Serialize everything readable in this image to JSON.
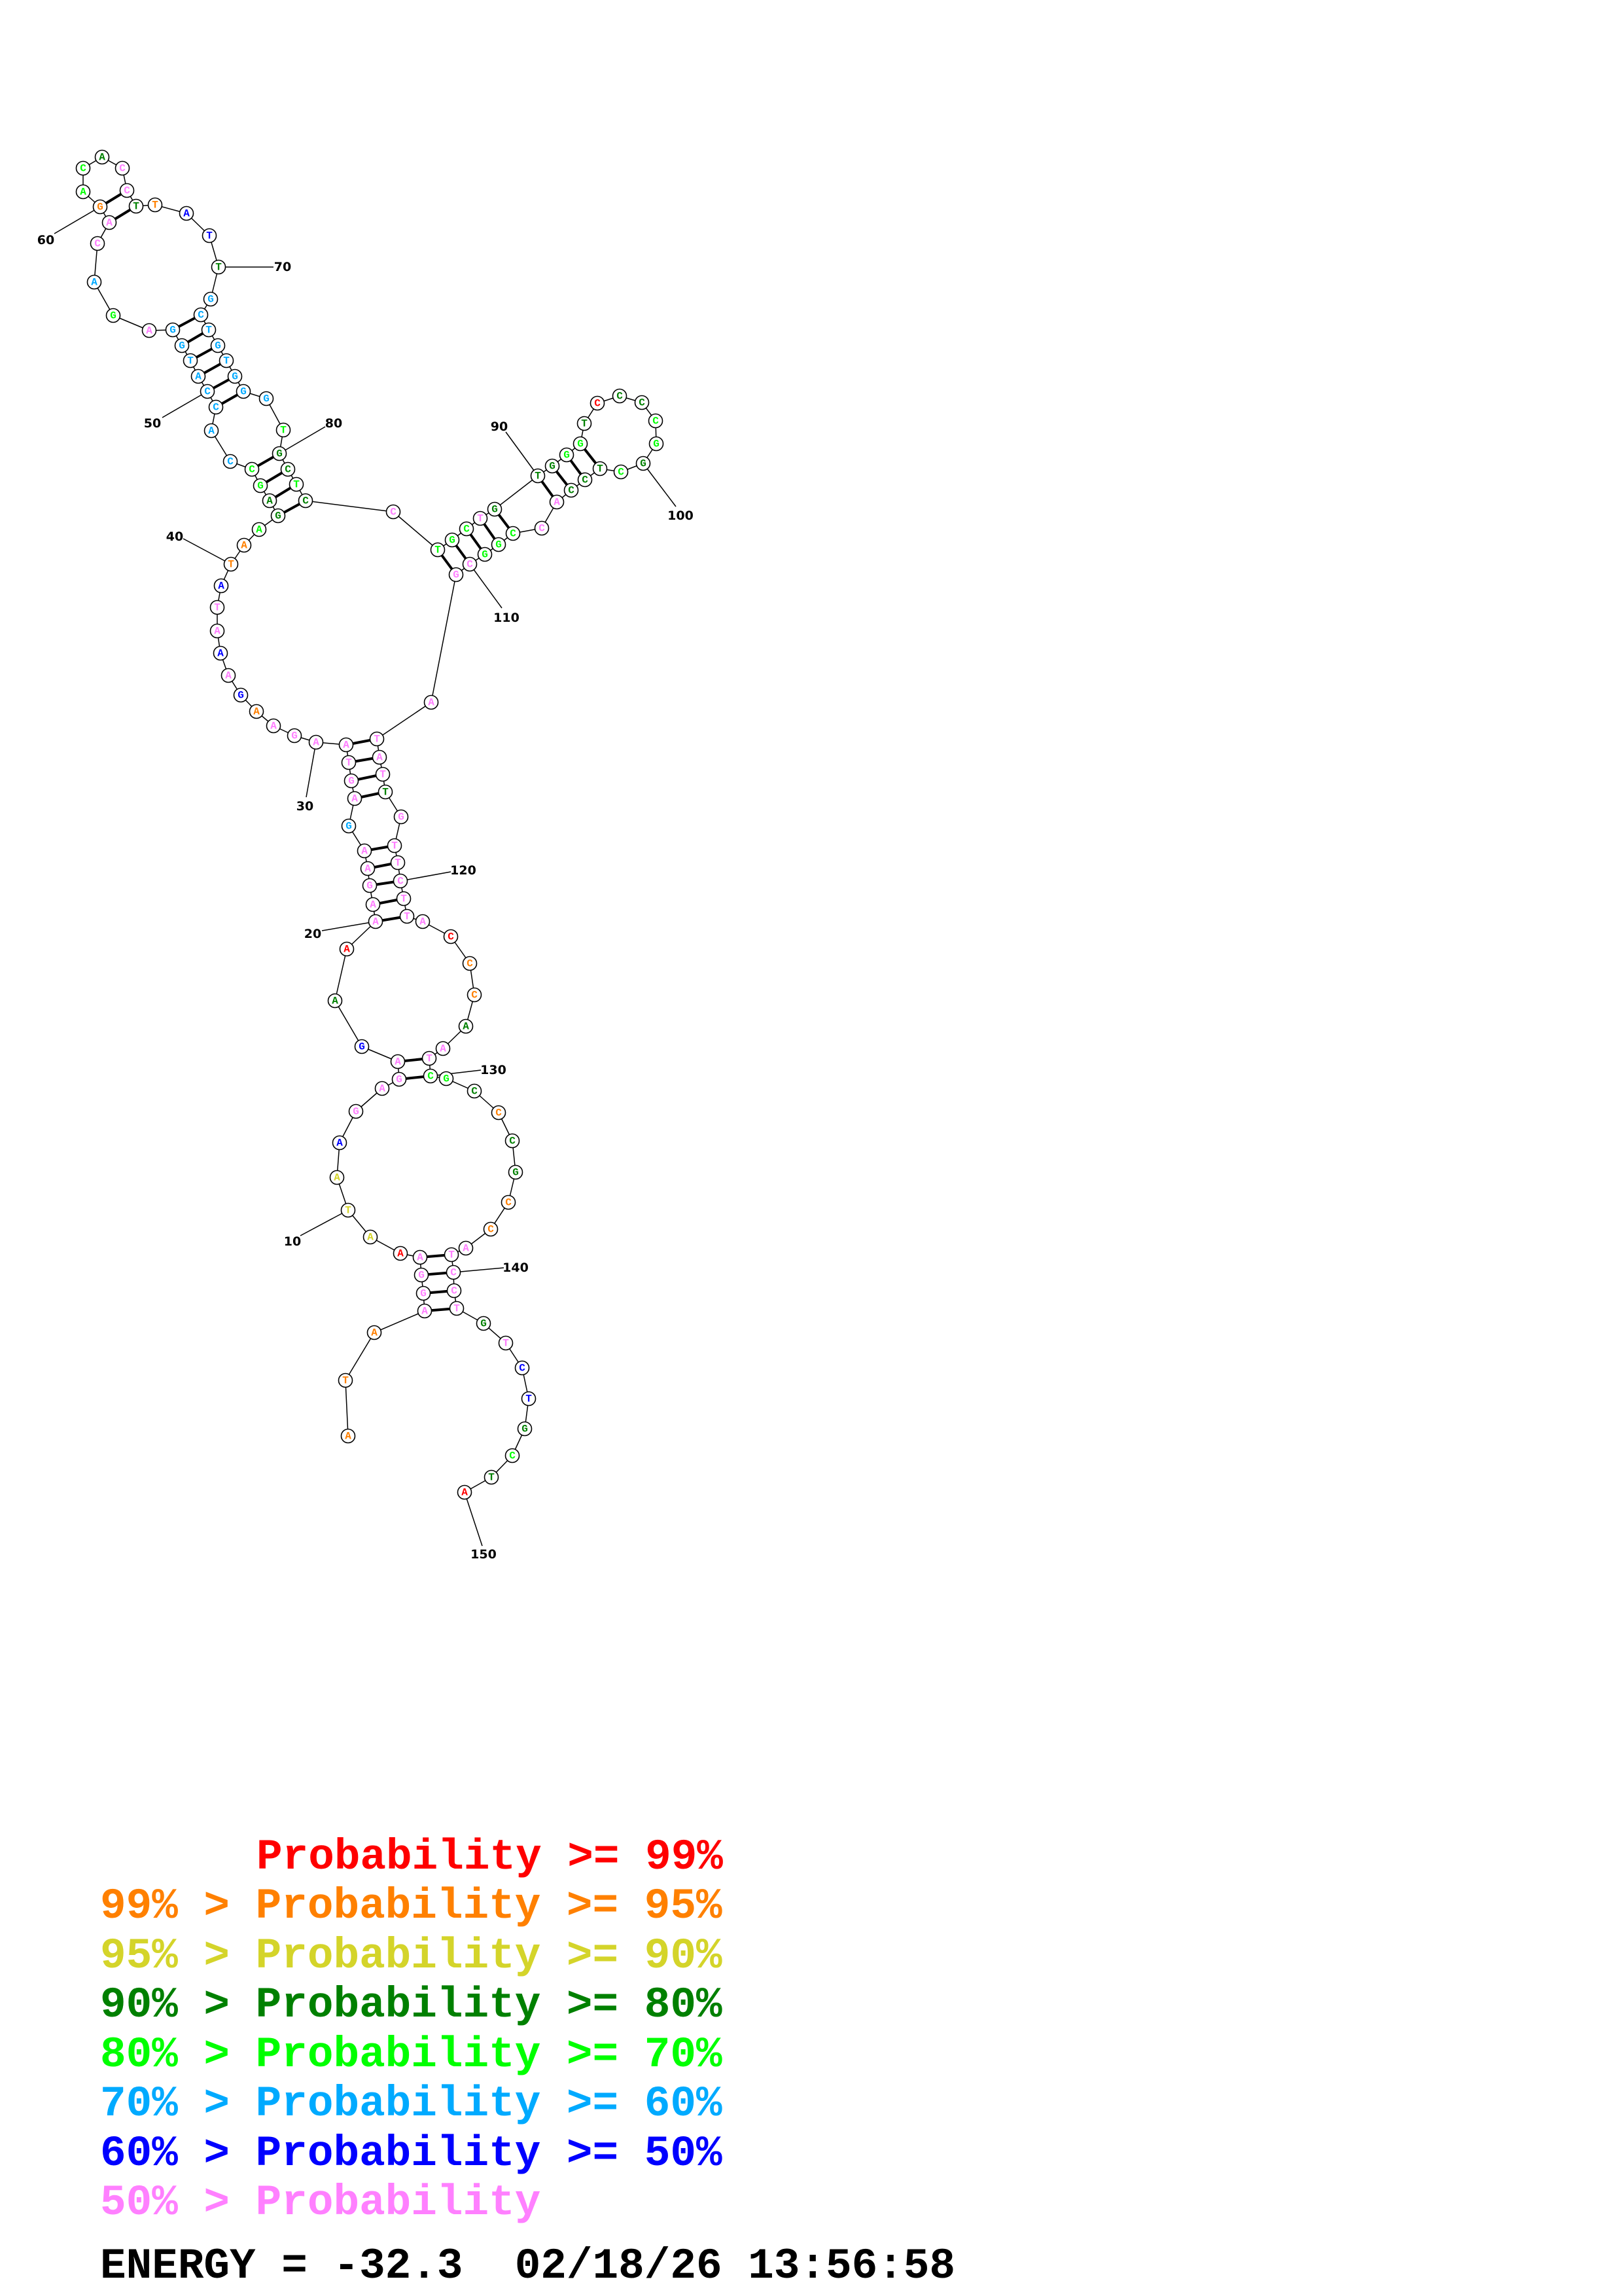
{
  "structure": {
    "sequence": "ATAAGGAAATAAGAGAGAAAAGAAGAGTAAGAAGAAATATAAGAGCCACCATGGAGACAGACACCTTATTGCTGTGGGTGCTCCTGCTGTGGGTCCCCGGCTCCACCGGCGATATTGTTCTTACCCAATCGCCCGCCATCCTGTCTGCTA",
    "probability_class": "oooppppryyybppppbdrpppppcpppppppobpbppboogddggccccccccpgcppoggdppdobbdccccccccgddgdpgggpdddggdrddggdgdddppgggppppppdppppppproodppggdoddoopppppdpbbdgdr",
    "base_pairs": [
      [
        4,
        142
      ],
      [
        5,
        141
      ],
      [
        6,
        140
      ],
      [
        7,
        139
      ],
      [
        15,
        130
      ],
      [
        16,
        129
      ],
      [
        20,
        122
      ],
      [
        21,
        121
      ],
      [
        22,
        120
      ],
      [
        23,
        119
      ],
      [
        24,
        118
      ],
      [
        26,
        116
      ],
      [
        27,
        115
      ],
      [
        28,
        114
      ],
      [
        29,
        113
      ],
      [
        43,
        83
      ],
      [
        44,
        82
      ],
      [
        45,
        81
      ],
      [
        46,
        80
      ],
      [
        49,
        77
      ],
      [
        50,
        76
      ],
      [
        51,
        75
      ],
      [
        52,
        74
      ],
      [
        53,
        73
      ],
      [
        54,
        72
      ],
      [
        59,
        66
      ],
      [
        60,
        65
      ],
      [
        85,
        111
      ],
      [
        86,
        110
      ],
      [
        87,
        109
      ],
      [
        88,
        108
      ],
      [
        89,
        107
      ],
      [
        90,
        105
      ],
      [
        91,
        104
      ],
      [
        92,
        103
      ],
      [
        93,
        102
      ]
    ],
    "position_labels": [
      10,
      20,
      30,
      40,
      50,
      60,
      70,
      80,
      90,
      100,
      110,
      120,
      130,
      140,
      150
    ]
  },
  "colors": {
    "r": "#ff0000",
    "o": "#ff8000",
    "y": "#d4d42a",
    "d": "#008000",
    "g": "#00ff00",
    "c": "#00aaff",
    "b": "#0000ff",
    "p": "#ff80ff"
  },
  "legend": [
    {
      "text": "Probability >= 99%",
      "class": "r"
    },
    {
      "text": "99% > Probability >= 95%",
      "class": "o"
    },
    {
      "text": "95% > Probability >= 90%",
      "class": "y"
    },
    {
      "text": "90% > Probability >= 80%",
      "class": "d"
    },
    {
      "text": "80% > Probability >= 70%",
      "class": "g"
    },
    {
      "text": "70% > Probability >= 60%",
      "class": "c"
    },
    {
      "text": "60% > Probability >= 50%",
      "class": "b"
    },
    {
      "text": "50% > Probability",
      "class": "p"
    }
  ],
  "footer": {
    "text": "ENERGY = -32.3  02/18/26 13:56:58",
    "energy": "-32.3",
    "date": "02/18/26",
    "time": "13:56:58"
  }
}
